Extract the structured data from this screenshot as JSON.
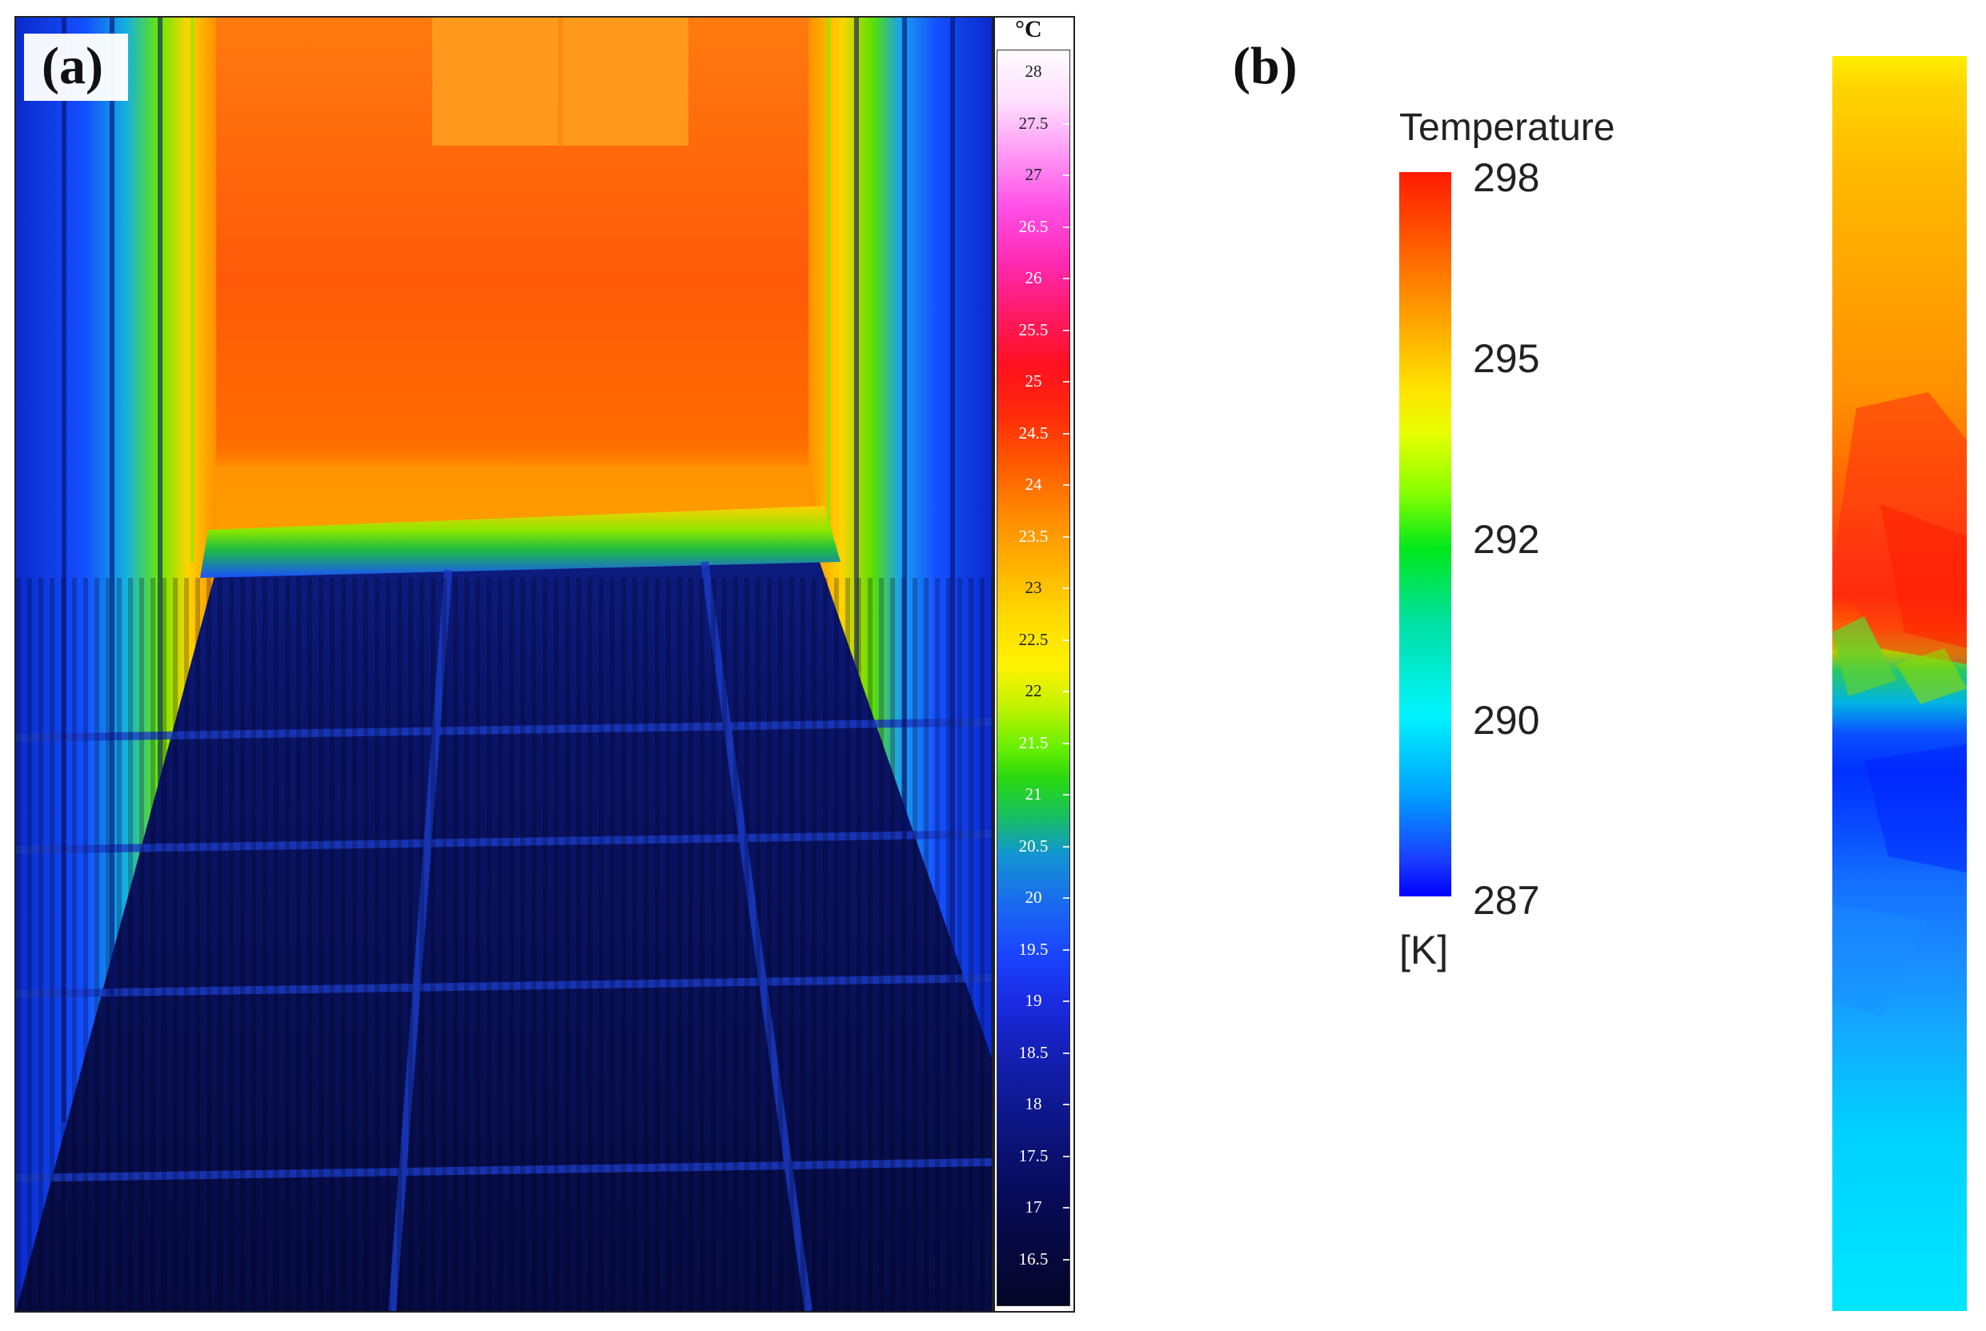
{
  "panel_a": {
    "letter": "(a)",
    "colorbar": {
      "unit": "°C",
      "ticks": [
        "28",
        "27.5",
        "27",
        "26.5",
        "26",
        "25.5",
        "25",
        "24.5",
        "24",
        "23.5",
        "23",
        "22.5",
        "22",
        "21.5",
        "21",
        "20.5",
        "20",
        "19.5",
        "19",
        "18.5",
        "18",
        "17.5",
        "17",
        "16.5"
      ]
    }
  },
  "panel_b": {
    "letter": "(b)",
    "legend": {
      "title": "Temperature",
      "unit": "[K]",
      "labels": [
        "298",
        "295",
        "292",
        "290",
        "287"
      ]
    }
  },
  "colors": {
    "hot": "#ff5a00",
    "warm": "#ffb100",
    "transition": "#2ad810",
    "cold": "#0a50ff",
    "very_cold": "#040626"
  }
}
